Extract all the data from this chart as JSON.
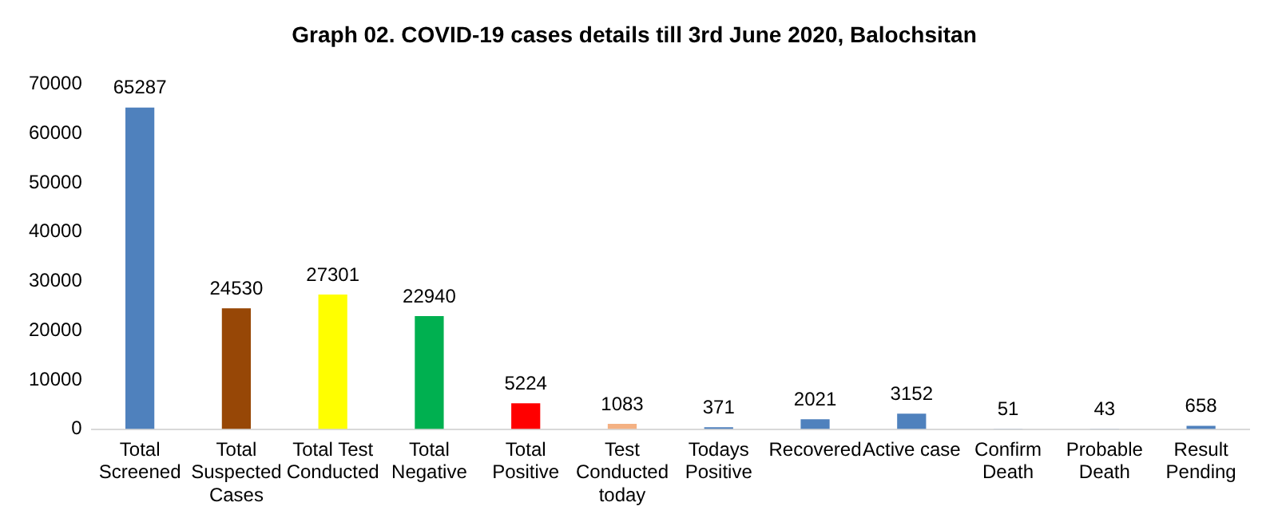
{
  "chart_data": {
    "type": "bar",
    "title": "Graph 02. COVID-19 cases details till 3rd June 2020, Balochsitan",
    "categories": [
      "Total Screened",
      "Total Suspected Cases",
      "Total Test Conducted",
      "Total Negative",
      "Total Positive",
      "Test Conducted today",
      "Todays Positive",
      "Recovered",
      "Active case",
      "Confirm Death",
      "Probable Death",
      "Result Pending"
    ],
    "values": [
      65287,
      24530,
      27301,
      22940,
      5224,
      1083,
      371,
      2021,
      3152,
      51,
      43,
      658
    ],
    "colors": [
      "#4f81bd",
      "#974706",
      "#ffff00",
      "#00b050",
      "#ff0000",
      "#f4b183",
      "#4f81bd",
      "#4f81bd",
      "#4f81bd",
      "#4f81bd",
      "#4f81bd",
      "#4f81bd"
    ],
    "ylim": [
      0,
      70000
    ],
    "yticks": [
      0,
      10000,
      20000,
      30000,
      40000,
      50000,
      60000,
      70000
    ],
    "data_labels": true,
    "grid": false,
    "legend": false
  }
}
